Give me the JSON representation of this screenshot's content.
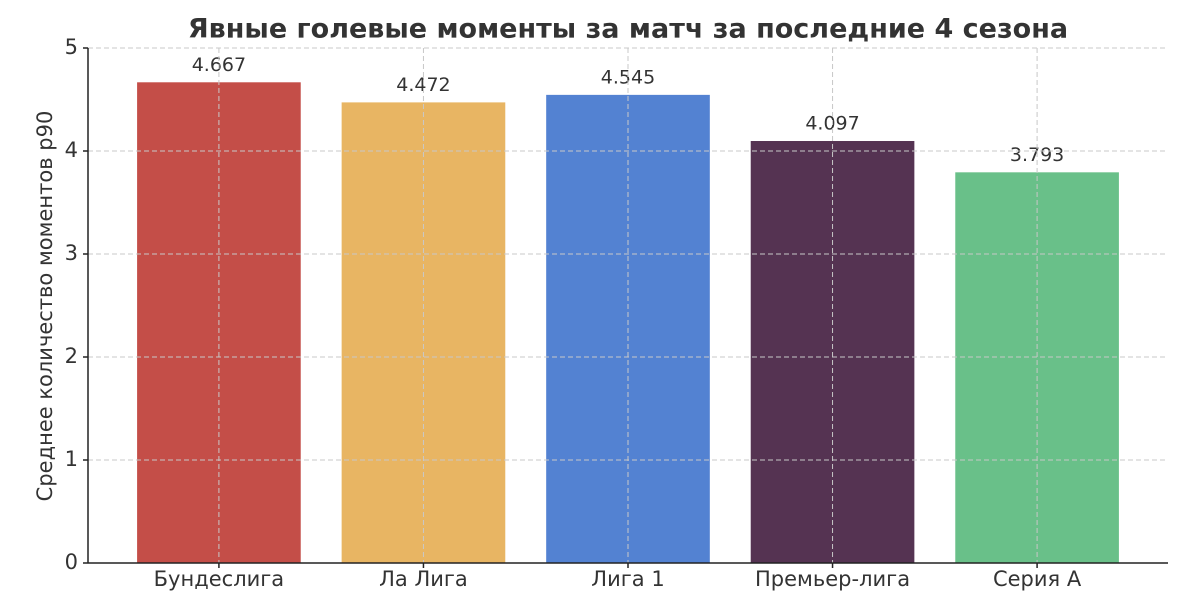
{
  "chart_data": {
    "type": "bar",
    "title": "Явные голевые моменты за матч за последние 4 сезона",
    "y_label": "Среднее количество моментов р90",
    "categories": [
      "Бундеслига",
      "Ла Лига",
      "Лига 1",
      "Премьер-лига",
      "Серия А"
    ],
    "values": [
      4.667,
      4.472,
      4.545,
      4.097,
      3.793
    ],
    "colors": [
      "#c44e48",
      "#e8b563",
      "#5382d2",
      "#553352",
      "#69c089"
    ],
    "ylim": [
      0,
      5
    ],
    "yticks": [
      0,
      1,
      2,
      3,
      4,
      5
    ],
    "grid": true
  }
}
